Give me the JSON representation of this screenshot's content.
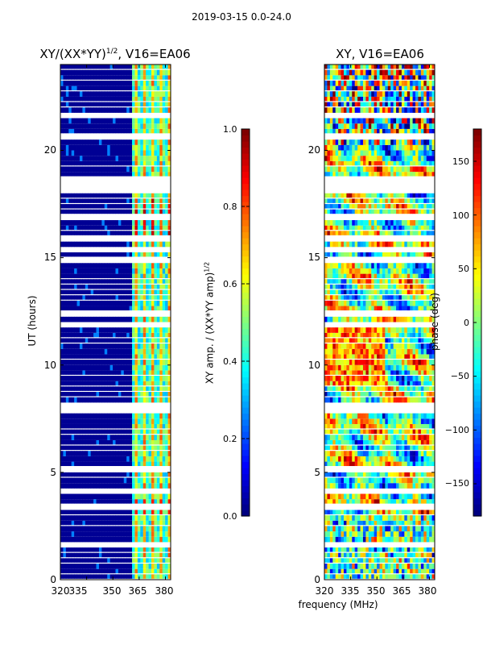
{
  "suptitle": "2019-03-15 0.0-24.0",
  "chart_data": [
    {
      "type": "heatmap",
      "title_base": "XY/(XX*YY)",
      "title_sup": "1/2",
      "title_tail": ", V16=EA06",
      "xlabel": "",
      "ylabel": "UT (hours)",
      "xlim": [
        320,
        383
      ],
      "ylim": [
        0,
        24
      ],
      "x_ticks": [
        320,
        335,
        350,
        365,
        380
      ],
      "y_ticks": [
        0,
        5,
        10,
        15,
        20
      ],
      "colorbar": {
        "label_base": "XY amp. / (XX*YY amp)",
        "label_sup": "1/2",
        "range": [
          0.0,
          1.0
        ],
        "ticks": [
          "0.0",
          "0.2",
          "0.4",
          "0.6",
          "0.8",
          "1.0"
        ],
        "colormap": "jet"
      }
    },
    {
      "type": "heatmap",
      "title": "XY, V16=EA06",
      "xlabel": "frequency (MHz)",
      "ylabel": "",
      "xlim": [
        320,
        383
      ],
      "ylim": [
        0,
        24
      ],
      "x_ticks": [
        320,
        335,
        350,
        365,
        380
      ],
      "y_ticks": [
        0,
        5,
        10,
        15,
        20
      ],
      "colorbar": {
        "label": "phase (deg)",
        "range": [
          -180,
          180
        ],
        "ticks": [
          "150",
          "100",
          "50",
          "0",
          "−50",
          "−100",
          "−150"
        ],
        "colormap": "jet"
      }
    }
  ]
}
